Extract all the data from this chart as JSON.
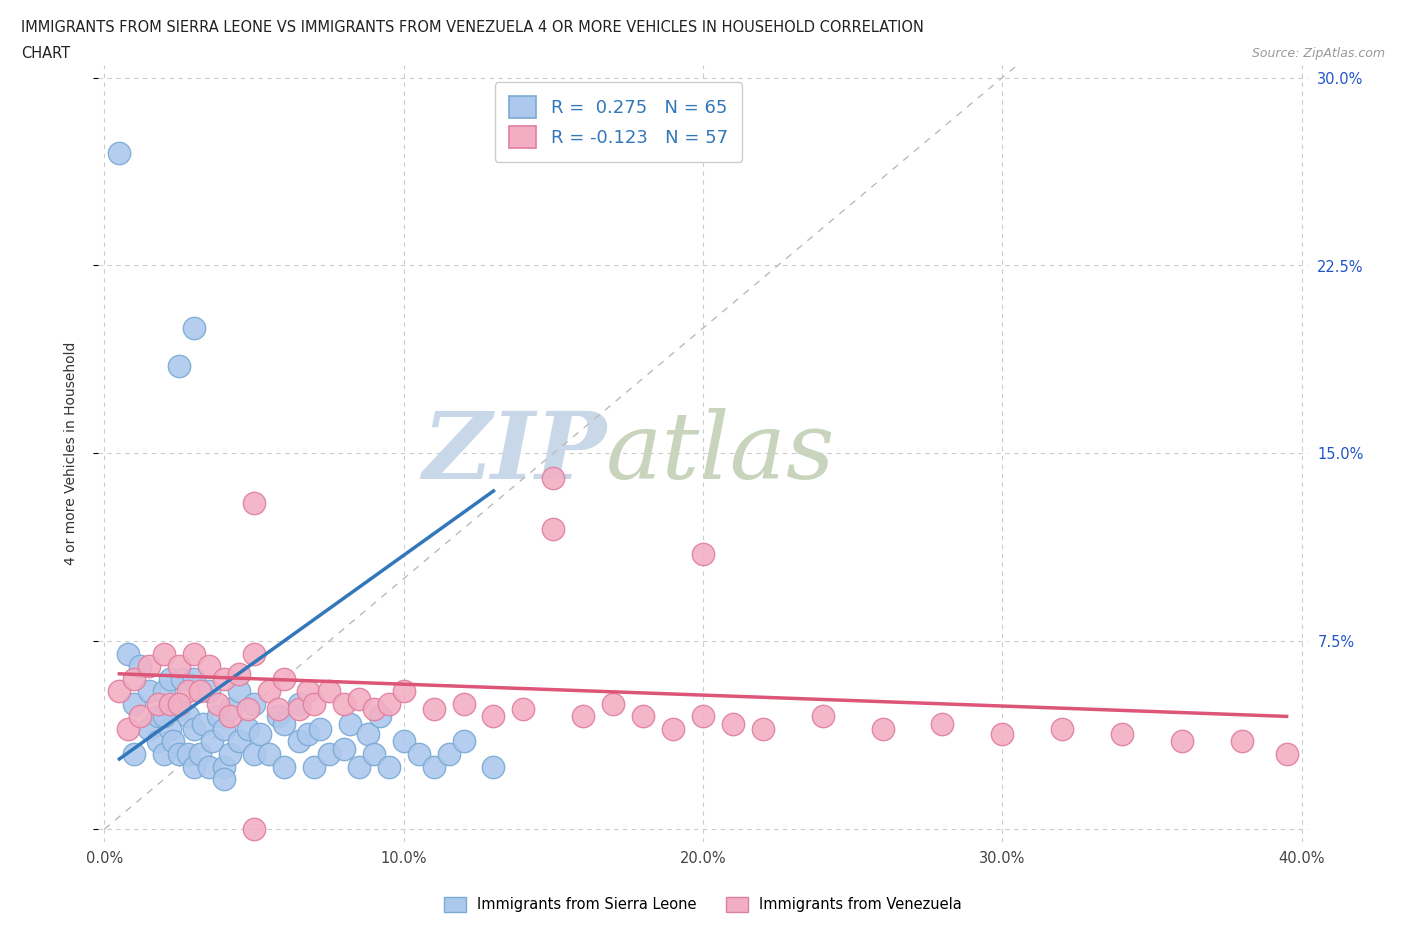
{
  "title_line1": "IMMIGRANTS FROM SIERRA LEONE VS IMMIGRANTS FROM VENEZUELA 4 OR MORE VEHICLES IN HOUSEHOLD CORRELATION",
  "title_line2": "CHART",
  "source_text": "Source: ZipAtlas.com",
  "ylabel": "4 or more Vehicles in Household",
  "xlim": [
    -0.002,
    0.402
  ],
  "ylim": [
    -0.005,
    0.305
  ],
  "xticks": [
    0.0,
    0.1,
    0.2,
    0.3,
    0.4
  ],
  "yticks": [
    0.0,
    0.075,
    0.15,
    0.225,
    0.3
  ],
  "xticklabels": [
    "0.0%",
    "10.0%",
    "20.0%",
    "30.0%",
    "40.0%"
  ],
  "yticklabels_right": [
    "",
    "7.5%",
    "15.0%",
    "22.5%",
    "30.0%"
  ],
  "sierra_leone_R": 0.275,
  "sierra_leone_N": 65,
  "venezuela_R": -0.123,
  "venezuela_N": 57,
  "sierra_leone_color": "#adc8ed",
  "sierra_leone_edge": "#7aaad4",
  "venezuela_color": "#f2afc4",
  "venezuela_edge": "#e07fa0",
  "trend_sierra_color": "#3377bb",
  "trend_venezuela_color": "#dd5577",
  "diagonal_color": "#bbbbbb",
  "watermark_zip_color": "#c8d8e8",
  "watermark_atlas_color": "#c8d4bc",
  "legend_text_color": "#3377bb",
  "background_color": "#ffffff",
  "sierra_leone_x": [
    0.005,
    0.008,
    0.01,
    0.012,
    0.015,
    0.015,
    0.018,
    0.018,
    0.02,
    0.02,
    0.022,
    0.022,
    0.023,
    0.025,
    0.025,
    0.026,
    0.028,
    0.028,
    0.03,
    0.03,
    0.03,
    0.032,
    0.033,
    0.035,
    0.035,
    0.036,
    0.038,
    0.04,
    0.04,
    0.042,
    0.042,
    0.045,
    0.045,
    0.048,
    0.05,
    0.05,
    0.052,
    0.055,
    0.058,
    0.06,
    0.06,
    0.065,
    0.065,
    0.068,
    0.07,
    0.072,
    0.075,
    0.08,
    0.082,
    0.085,
    0.088,
    0.09,
    0.092,
    0.095,
    0.1,
    0.105,
    0.11,
    0.115,
    0.12,
    0.13,
    0.01,
    0.02,
    0.03,
    0.025,
    0.04
  ],
  "sierra_leone_y": [
    0.27,
    0.07,
    0.05,
    0.065,
    0.04,
    0.055,
    0.035,
    0.045,
    0.03,
    0.055,
    0.04,
    0.06,
    0.035,
    0.03,
    0.048,
    0.06,
    0.03,
    0.045,
    0.025,
    0.04,
    0.06,
    0.03,
    0.042,
    0.025,
    0.055,
    0.035,
    0.045,
    0.025,
    0.04,
    0.03,
    0.048,
    0.035,
    0.055,
    0.04,
    0.03,
    0.05,
    0.038,
    0.03,
    0.045,
    0.025,
    0.042,
    0.035,
    0.05,
    0.038,
    0.025,
    0.04,
    0.03,
    0.032,
    0.042,
    0.025,
    0.038,
    0.03,
    0.045,
    0.025,
    0.035,
    0.03,
    0.025,
    0.03,
    0.035,
    0.025,
    0.03,
    0.045,
    0.2,
    0.185,
    0.02
  ],
  "venezuela_x": [
    0.005,
    0.008,
    0.01,
    0.012,
    0.015,
    0.018,
    0.02,
    0.022,
    0.025,
    0.028,
    0.03,
    0.032,
    0.035,
    0.038,
    0.04,
    0.042,
    0.045,
    0.048,
    0.05,
    0.055,
    0.058,
    0.06,
    0.065,
    0.068,
    0.07,
    0.075,
    0.08,
    0.085,
    0.09,
    0.095,
    0.1,
    0.11,
    0.12,
    0.13,
    0.14,
    0.15,
    0.16,
    0.17,
    0.18,
    0.19,
    0.2,
    0.21,
    0.22,
    0.24,
    0.26,
    0.28,
    0.3,
    0.32,
    0.34,
    0.36,
    0.38,
    0.395,
    0.025,
    0.05,
    0.15,
    0.2,
    0.05
  ],
  "venezuela_y": [
    0.055,
    0.04,
    0.06,
    0.045,
    0.065,
    0.05,
    0.07,
    0.05,
    0.065,
    0.055,
    0.07,
    0.055,
    0.065,
    0.05,
    0.06,
    0.045,
    0.062,
    0.048,
    0.07,
    0.055,
    0.048,
    0.06,
    0.048,
    0.055,
    0.05,
    0.055,
    0.05,
    0.052,
    0.048,
    0.05,
    0.055,
    0.048,
    0.05,
    0.045,
    0.048,
    0.14,
    0.045,
    0.05,
    0.045,
    0.04,
    0.045,
    0.042,
    0.04,
    0.045,
    0.04,
    0.042,
    0.038,
    0.04,
    0.038,
    0.035,
    0.035,
    0.03,
    0.05,
    0.0,
    0.12,
    0.11,
    0.13
  ],
  "sl_trend_x": [
    0.005,
    0.13
  ],
  "sl_trend_y": [
    0.028,
    0.135
  ],
  "ven_trend_x": [
    0.005,
    0.395
  ],
  "ven_trend_y": [
    0.062,
    0.045
  ]
}
